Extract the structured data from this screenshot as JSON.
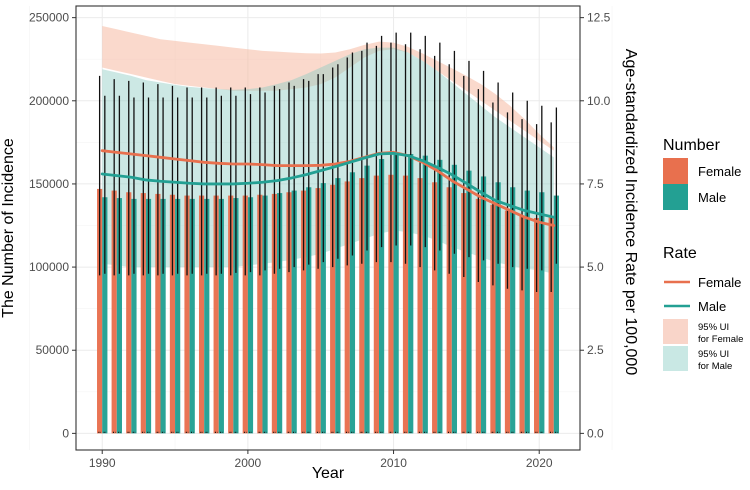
{
  "chart_data": {
    "type": "bar",
    "xlabel": "Year",
    "ylabel_left": "The Number of Incidence",
    "ylabel_right": "Age-standardized Incidence Rate per 100,000",
    "years": [
      1990,
      1991,
      1992,
      1993,
      1994,
      1995,
      1996,
      1997,
      1998,
      1999,
      2000,
      2001,
      2002,
      2003,
      2004,
      2005,
      2006,
      2007,
      2008,
      2009,
      2010,
      2011,
      2012,
      2013,
      2014,
      2015,
      2016,
      2017,
      2018,
      2019,
      2020,
      2021
    ],
    "x_ticks": [
      1990,
      2000,
      2010,
      2020
    ],
    "x_range": [
      1988.2,
      2022.8
    ],
    "left_axis": {
      "range": [
        -10000,
        257000
      ],
      "ticks": [
        0,
        50000,
        100000,
        150000,
        200000,
        250000
      ]
    },
    "right_axis": {
      "range": [
        -0.5,
        12.85
      ],
      "ticks": [
        0.0,
        2.5,
        5.0,
        7.5,
        10.0,
        12.5
      ],
      "tick_labels": [
        "0.0",
        "2.5",
        "5.0",
        "7.5",
        "10.0",
        "12.5"
      ]
    },
    "series": [
      {
        "name": "Female",
        "kind": "count",
        "color": "#E8704E",
        "values": [
          147000,
          146000,
          145000,
          144500,
          144000,
          143500,
          143000,
          143000,
          143000,
          143000,
          143000,
          143500,
          144000,
          145000,
          146000,
          147500,
          149500,
          151500,
          153500,
          155000,
          155500,
          155000,
          153500,
          151000,
          148000,
          144500,
          141000,
          137500,
          134000,
          131000,
          129500,
          130000
        ],
        "lower": [
          95000,
          95000,
          95000,
          95000,
          95000,
          95000,
          95000,
          95000,
          95000,
          95000,
          95000,
          95000,
          96000,
          97000,
          98000,
          99000,
          100000,
          101000,
          102000,
          103000,
          103000,
          102000,
          100000,
          98000,
          96000,
          94000,
          91000,
          89000,
          87000,
          86000,
          85000,
          85000
        ],
        "upper": [
          215000,
          213000,
          212000,
          211000,
          210000,
          209000,
          208000,
          208000,
          208000,
          208000,
          208000,
          208000,
          209000,
          211000,
          213000,
          216000,
          220000,
          226000,
          230000,
          233000,
          235000,
          234000,
          231000,
          227000,
          222000,
          215000,
          207000,
          199000,
          193000,
          189000,
          186000,
          187000
        ]
      },
      {
        "name": "Male",
        "kind": "count",
        "color": "#23A093",
        "values": [
          142000,
          141500,
          141000,
          141000,
          141000,
          141000,
          141000,
          141000,
          141000,
          141500,
          142000,
          143000,
          144500,
          146000,
          148000,
          150500,
          153500,
          157000,
          161000,
          165000,
          167500,
          168000,
          167000,
          164500,
          161500,
          158000,
          154500,
          151000,
          148000,
          146000,
          145000,
          143000
        ],
        "lower": [
          96000,
          96000,
          96000,
          96000,
          96000,
          96000,
          96000,
          96000,
          96000,
          96500,
          97000,
          98000,
          99000,
          100000,
          101500,
          103000,
          105000,
          107000,
          110000,
          112000,
          113000,
          113000,
          112000,
          110000,
          108000,
          106000,
          104000,
          102000,
          100000,
          99000,
          98000,
          102000
        ],
        "upper": [
          203000,
          203000,
          202000,
          202000,
          202000,
          202000,
          202000,
          202000,
          203000,
          203000,
          204000,
          205000,
          207000,
          209000,
          212000,
          216000,
          222000,
          229000,
          235000,
          239000,
          241000,
          241000,
          239000,
          235000,
          230000,
          224000,
          218000,
          211000,
          205000,
          200000,
          197000,
          196000
        ]
      },
      {
        "name": "Female",
        "kind": "rate",
        "color": "#E8704E",
        "values": [
          8.5,
          8.45,
          8.4,
          8.35,
          8.3,
          8.25,
          8.2,
          8.15,
          8.12,
          8.1,
          8.1,
          8.08,
          8.05,
          8.05,
          8.05,
          8.06,
          8.1,
          8.18,
          8.3,
          8.42,
          8.45,
          8.35,
          8.15,
          7.9,
          7.6,
          7.35,
          7.1,
          6.9,
          6.7,
          6.5,
          6.35,
          6.25
        ],
        "lower": [
          11.0,
          10.9,
          10.8,
          10.7,
          10.6,
          10.5,
          10.45,
          10.4,
          10.35,
          10.3,
          10.3,
          10.3,
          10.3,
          10.35,
          10.4,
          10.5,
          10.7,
          11.0,
          11.3,
          11.5,
          11.55,
          11.45,
          11.2,
          10.9,
          10.6,
          10.3,
          10.0,
          9.7,
          9.4,
          9.1,
          8.8,
          8.5
        ],
        "upper": [
          12.25,
          12.15,
          12.05,
          11.95,
          11.85,
          11.8,
          11.75,
          11.7,
          11.65,
          11.6,
          11.55,
          11.5,
          11.48,
          11.45,
          11.43,
          11.42,
          11.45,
          11.55,
          11.68,
          11.78,
          11.75,
          11.62,
          11.42,
          11.2,
          10.98,
          10.75,
          10.5,
          10.2,
          9.85,
          9.45,
          9.0,
          8.6
        ]
      },
      {
        "name": "Male",
        "kind": "rate",
        "color": "#23A093",
        "values": [
          7.8,
          7.75,
          7.7,
          7.62,
          7.58,
          7.55,
          7.52,
          7.5,
          7.5,
          7.5,
          7.52,
          7.55,
          7.6,
          7.68,
          7.78,
          7.9,
          8.02,
          8.15,
          8.28,
          8.4,
          8.42,
          8.35,
          8.2,
          8.0,
          7.78,
          7.52,
          7.25,
          7.0,
          6.85,
          6.7,
          6.6,
          6.5
        ],
        "lower": [
          5.1,
          5.05,
          5.0,
          5.0,
          5.0,
          5.0,
          5.0,
          5.0,
          5.0,
          5.0,
          5.05,
          5.1,
          5.15,
          5.22,
          5.3,
          5.4,
          5.55,
          5.7,
          5.85,
          6.0,
          6.1,
          6.05,
          5.95,
          5.8,
          5.6,
          5.45,
          5.3,
          5.15,
          5.05,
          4.95,
          4.9,
          4.8
        ],
        "upper": [
          10.95,
          10.85,
          10.75,
          10.62,
          10.55,
          10.48,
          10.42,
          10.38,
          10.35,
          10.33,
          10.35,
          10.4,
          10.5,
          10.62,
          10.8,
          11.0,
          11.2,
          11.4,
          11.55,
          11.6,
          11.6,
          11.45,
          11.2,
          10.9,
          10.55,
          10.2,
          9.85,
          9.5,
          9.2,
          8.9,
          8.6,
          8.3
        ]
      }
    ],
    "legend": {
      "number_title": "Number",
      "rate_title": "Rate",
      "number_items": [
        {
          "label": "Female",
          "color": "#E8704E"
        },
        {
          "label": "Male",
          "color": "#23A093"
        }
      ],
      "rate_lines": [
        {
          "label": "Female",
          "color": "#E8704E"
        },
        {
          "label": "Male",
          "color": "#23A093"
        }
      ],
      "ui_items": [
        {
          "line1": "95% UI",
          "line2": "for Female",
          "color": "#F9D5C9"
        },
        {
          "line1": "95% UI",
          "line2": "for Male",
          "color": "#C9E8E4"
        }
      ]
    }
  }
}
